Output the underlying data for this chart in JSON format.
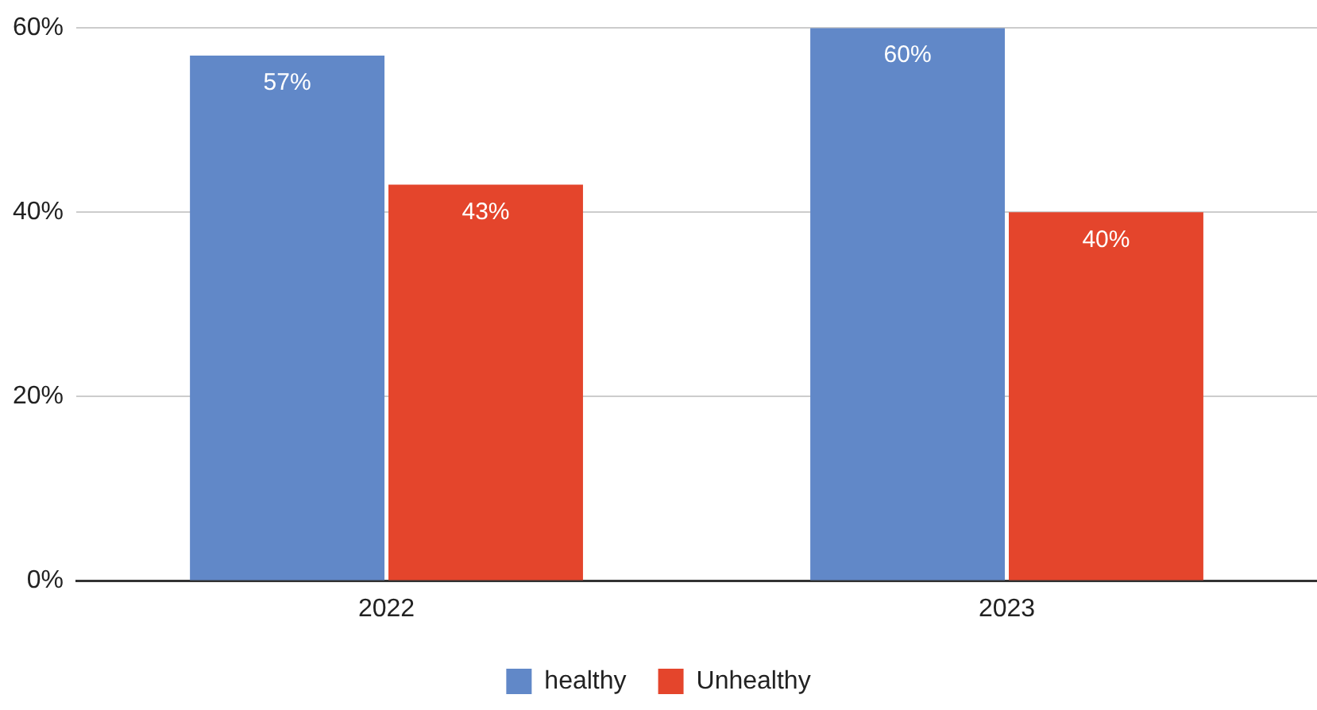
{
  "chart_data": {
    "type": "bar",
    "categories": [
      "2022",
      "2023"
    ],
    "series": [
      {
        "name": "healthy",
        "color": "#6188c8",
        "values": [
          57,
          60
        ],
        "value_labels": [
          "57%",
          "60%"
        ]
      },
      {
        "name": "Unhealthy",
        "color": "#e4452c",
        "values": [
          43,
          40
        ],
        "value_labels": [
          "43%",
          "40%"
        ]
      }
    ],
    "ylim": [
      0,
      60
    ],
    "yticks": [
      {
        "value": 0,
        "label": "0%"
      },
      {
        "value": 20,
        "label": "20%"
      },
      {
        "value": 40,
        "label": "40%"
      },
      {
        "value": 60,
        "label": "60%"
      }
    ],
    "grid": "y",
    "legend": "bottom"
  }
}
